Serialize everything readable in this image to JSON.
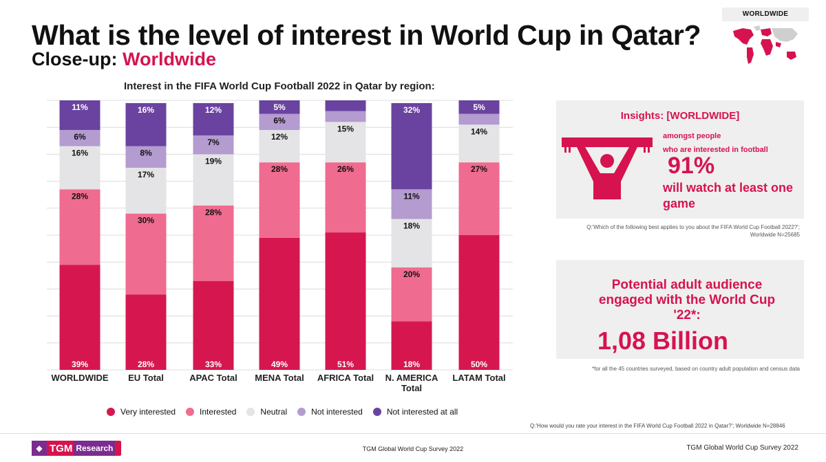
{
  "header": {
    "title": "What is the level of interest in World Cup in Qatar?",
    "subtitle_prefix": "Close-up:",
    "subtitle_accent": "Worldwide",
    "map_label": "WORLDWIDE"
  },
  "colors": {
    "accent": "#d6134f",
    "very_interested": "#d6174f",
    "interested": "#ef6b8f",
    "neutral": "#e4e4e6",
    "not_interested": "#b49bd0",
    "not_at_all": "#6a43a0"
  },
  "chart_data": {
    "type": "bar",
    "stacked": true,
    "title": "Interest in the FIFA World Cup Football  2022 in Qatar by region:",
    "categories": [
      "WORLDWIDE",
      "EU Total",
      "APAC Total",
      "MENA Total",
      "AFRICA Total",
      "N. AMERICA Total",
      "LATAM Total"
    ],
    "ylim": [
      0,
      100
    ],
    "grid": true,
    "legend_position": "bottom",
    "series": [
      {
        "name": "Very interested",
        "values": [
          39,
          28,
          33,
          49,
          51,
          18,
          50
        ],
        "labels": [
          "39%",
          "28%",
          "33%",
          "49%",
          "51%",
          "18%",
          "50%"
        ]
      },
      {
        "name": "Interested",
        "values": [
          28,
          30,
          28,
          28,
          26,
          20,
          27
        ],
        "labels": [
          "28%",
          "30%",
          "28%",
          "28%",
          "26%",
          "20%",
          "27%"
        ]
      },
      {
        "name": "Neutral",
        "values": [
          16,
          17,
          19,
          12,
          15,
          18,
          14
        ],
        "labels": [
          "16%",
          "17%",
          "19%",
          "12%",
          "15%",
          "18%",
          "14%"
        ]
      },
      {
        "name": "Not interested",
        "values": [
          6,
          8,
          7,
          6,
          4,
          11,
          4
        ],
        "labels": [
          "6%",
          "8%",
          "7%",
          "6%",
          "",
          "11%",
          ""
        ]
      },
      {
        "name": "Not interested at all",
        "values": [
          11,
          16,
          12,
          5,
          4,
          32,
          5
        ],
        "labels": [
          "11%",
          "16%",
          "12%",
          "5%",
          "",
          "32%",
          "5%"
        ]
      }
    ]
  },
  "legend": [
    {
      "label": "Very interested",
      "color": "#d6174f"
    },
    {
      "label": "Interested",
      "color": "#ef6b8f"
    },
    {
      "label": "Neutral",
      "color": "#e4e4e6"
    },
    {
      "label": "Not interested",
      "color": "#b49bd0"
    },
    {
      "label": "Not interested at all",
      "color": "#6a43a0"
    }
  ],
  "chart_footnote": "Q:'How would you rate your interest in the FIFA World Cup Football 2022 in Qatar?'; Worldwide N=28846",
  "insights": {
    "title": "Insights: [WORLDWIDE]",
    "line1": "amongst people",
    "line2": "who are interested in football",
    "stat": "91%",
    "line3": "will watch at least one game",
    "note": "Q:'Which of the following best applies to you about the FIFA World Cup Football 2022?'; Worldwide N=25685",
    "icon": "fan-holding-scarf-icon"
  },
  "audience": {
    "title": "Potential adult audience engaged with the World Cup '22*:",
    "stat": "1,08 Billion",
    "note": "*for all the 45 countries surveyed, based on country adult population and census data"
  },
  "footer": {
    "logo_tgm": "TGM",
    "logo_research": "Research",
    "center": "TGM Global World Cup Survey 2022",
    "right": "TGM Global World Cup Survey 2022"
  }
}
